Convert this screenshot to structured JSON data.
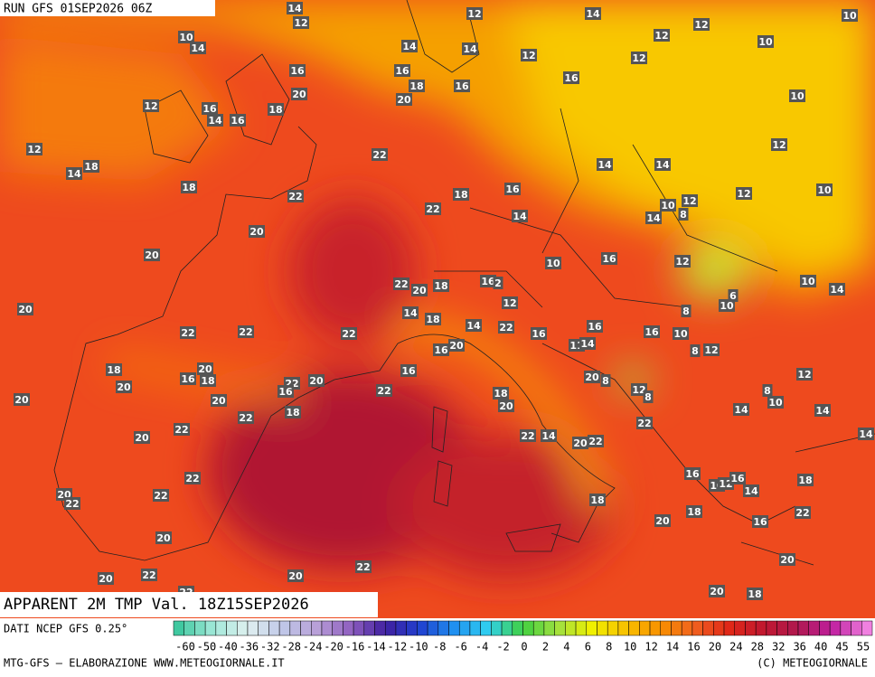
{
  "header": {
    "run": "RUN GFS 01SEP2026 06Z",
    "title": "APPARENT 2M TMP Val. 18Z15SEP2026"
  },
  "map": {
    "labels": [
      14,
      12,
      12,
      14,
      10,
      10,
      14,
      14,
      14,
      12,
      12,
      12,
      10,
      12,
      16,
      16,
      18,
      16,
      16,
      20,
      20,
      10,
      12,
      16,
      14,
      16,
      18,
      12,
      12,
      22,
      14,
      18,
      14,
      14,
      18,
      22,
      18,
      16,
      12,
      10,
      22,
      14,
      10,
      12,
      8,
      14,
      20,
      20,
      16,
      10,
      12,
      22,
      20,
      18,
      16,
      2,
      10,
      14,
      20,
      12,
      6,
      10,
      8,
      14,
      18,
      14,
      22,
      16,
      16,
      10,
      22,
      22,
      22,
      16,
      11,
      14,
      16,
      20,
      8,
      12,
      18,
      20,
      16,
      18,
      20,
      22,
      16,
      20,
      16,
      20,
      8,
      12,
      20,
      20,
      18,
      22,
      18,
      20,
      12,
      8,
      8,
      10,
      14,
      14,
      22,
      22,
      20,
      22,
      22,
      14,
      20,
      22,
      14,
      22,
      16,
      10,
      12,
      16,
      14,
      18,
      20,
      22,
      22,
      18,
      20,
      18,
      16,
      22,
      20,
      20,
      22,
      20,
      22,
      22,
      20,
      20,
      18
    ]
  },
  "legend": {
    "source": "DATI NCEP GFS 0.25°",
    "scale": [
      -60,
      -50,
      -40,
      -36,
      -32,
      -28,
      -24,
      -20,
      -16,
      -14,
      -12,
      -10,
      -8,
      -6,
      -4,
      -2,
      0,
      2,
      4,
      6,
      8,
      10,
      12,
      14,
      16,
      20,
      24,
      28,
      32,
      36,
      40,
      45,
      55
    ]
  },
  "footer": {
    "credit": "MTG-GFS — ELABORAZIONE WWW.METEOGIORNALE.IT",
    "copyright": "(C) METEOGIORNALE"
  }
}
